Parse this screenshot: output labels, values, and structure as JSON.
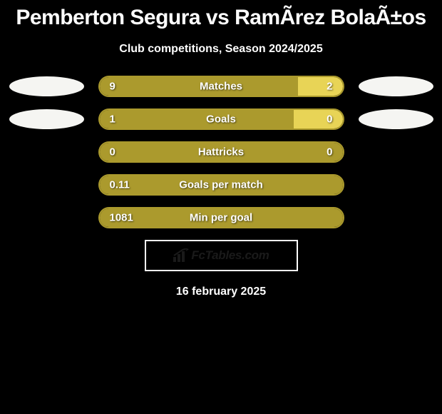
{
  "title": "Pemberton Segura vs RamÃ­rez BolaÃ±os",
  "subtitle": "Club competitions, Season 2024/2025",
  "date": "16 february 2025",
  "brand": "FcTables.com",
  "colors": {
    "background": "#000000",
    "bar_primary": "#ab9a2d",
    "bar_secondary": "#e8d456",
    "ellipse_left": "#f5f5f2",
    "ellipse_right": "#f5f5f2",
    "text": "#ffffff",
    "border": "#ab9a2d"
  },
  "stats": [
    {
      "label": "Matches",
      "left_val": "9",
      "right_val": "2",
      "left_pct": 81.8,
      "show_ellipses": true,
      "two_tone": true
    },
    {
      "label": "Goals",
      "left_val": "1",
      "right_val": "0",
      "left_pct": 80,
      "show_ellipses": true,
      "two_tone": true
    },
    {
      "label": "Hattricks",
      "left_val": "0",
      "right_val": "0",
      "left_pct": 100,
      "show_ellipses": false,
      "two_tone": false
    },
    {
      "label": "Goals per match",
      "left_val": "0.11",
      "right_val": "",
      "left_pct": 100,
      "show_ellipses": false,
      "two_tone": false
    },
    {
      "label": "Min per goal",
      "left_val": "1081",
      "right_val": "",
      "left_pct": 100,
      "show_ellipses": false,
      "two_tone": false
    }
  ]
}
